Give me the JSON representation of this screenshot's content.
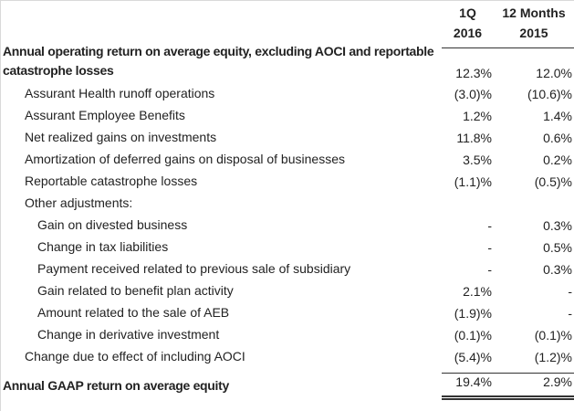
{
  "colors": {
    "text": "#222222",
    "rule": "#333333",
    "frame": "#d9d9d9",
    "background": "#ffffff"
  },
  "table": {
    "header": {
      "col1": {
        "line1": "1Q",
        "line2": "2016"
      },
      "col2": {
        "line1": "12 Months",
        "line2": "2015"
      }
    },
    "rows": [
      {
        "label_lines": [
          "Annual operating return on average equity, excluding AOCI and reportable",
          "catastrophe losses"
        ],
        "indent": 0,
        "bold": true,
        "total": false,
        "values": [
          "12.3%",
          "12.0%"
        ]
      },
      {
        "label_lines": [
          "Assurant Health runoff operations"
        ],
        "indent": 1,
        "bold": false,
        "total": false,
        "values": [
          "(3.0)%",
          "(10.6)%"
        ]
      },
      {
        "label_lines": [
          "Assurant Employee Benefits"
        ],
        "indent": 1,
        "bold": false,
        "total": false,
        "values": [
          "1.2%",
          "1.4%"
        ]
      },
      {
        "label_lines": [
          "Net realized gains on investments"
        ],
        "indent": 1,
        "bold": false,
        "total": false,
        "values": [
          "11.8%",
          "0.6%"
        ]
      },
      {
        "label_lines": [
          "Amortization of deferred gains on disposal of businesses"
        ],
        "indent": 1,
        "bold": false,
        "total": false,
        "values": [
          "3.5%",
          "0.2%"
        ]
      },
      {
        "label_lines": [
          "Reportable catastrophe losses"
        ],
        "indent": 1,
        "bold": false,
        "total": false,
        "values": [
          "(1.1)%",
          "(0.5)%"
        ]
      },
      {
        "label_lines": [
          "Other adjustments:"
        ],
        "indent": 1,
        "bold": false,
        "total": false,
        "values": [
          "",
          ""
        ]
      },
      {
        "label_lines": [
          "Gain on divested business"
        ],
        "indent": 2,
        "bold": false,
        "total": false,
        "values": [
          "-",
          "0.3%"
        ]
      },
      {
        "label_lines": [
          "Change in tax liabilities"
        ],
        "indent": 2,
        "bold": false,
        "total": false,
        "values": [
          "-",
          "0.5%"
        ]
      },
      {
        "label_lines": [
          "Payment received related to previous sale of subsidiary"
        ],
        "indent": 2,
        "bold": false,
        "total": false,
        "values": [
          "-",
          "0.3%"
        ]
      },
      {
        "label_lines": [
          "Gain related to benefit plan activity"
        ],
        "indent": 2,
        "bold": false,
        "total": false,
        "values": [
          "2.1%",
          "-"
        ]
      },
      {
        "label_lines": [
          "Amount related to the sale of AEB"
        ],
        "indent": 2,
        "bold": false,
        "total": false,
        "values": [
          "(1.9)%",
          "-"
        ]
      },
      {
        "label_lines": [
          "Change in derivative investment"
        ],
        "indent": 2,
        "bold": false,
        "total": false,
        "values": [
          "(0.1)%",
          "(0.1)%"
        ]
      },
      {
        "label_lines": [
          "Change due to effect of including AOCI"
        ],
        "indent": 1,
        "bold": false,
        "total": false,
        "values": [
          "(5.4)%",
          "(1.2)%"
        ]
      },
      {
        "label_lines": [
          "Annual GAAP return on average equity"
        ],
        "indent": 0,
        "bold": true,
        "total": true,
        "values": [
          "19.4%",
          "2.9%"
        ]
      }
    ]
  }
}
